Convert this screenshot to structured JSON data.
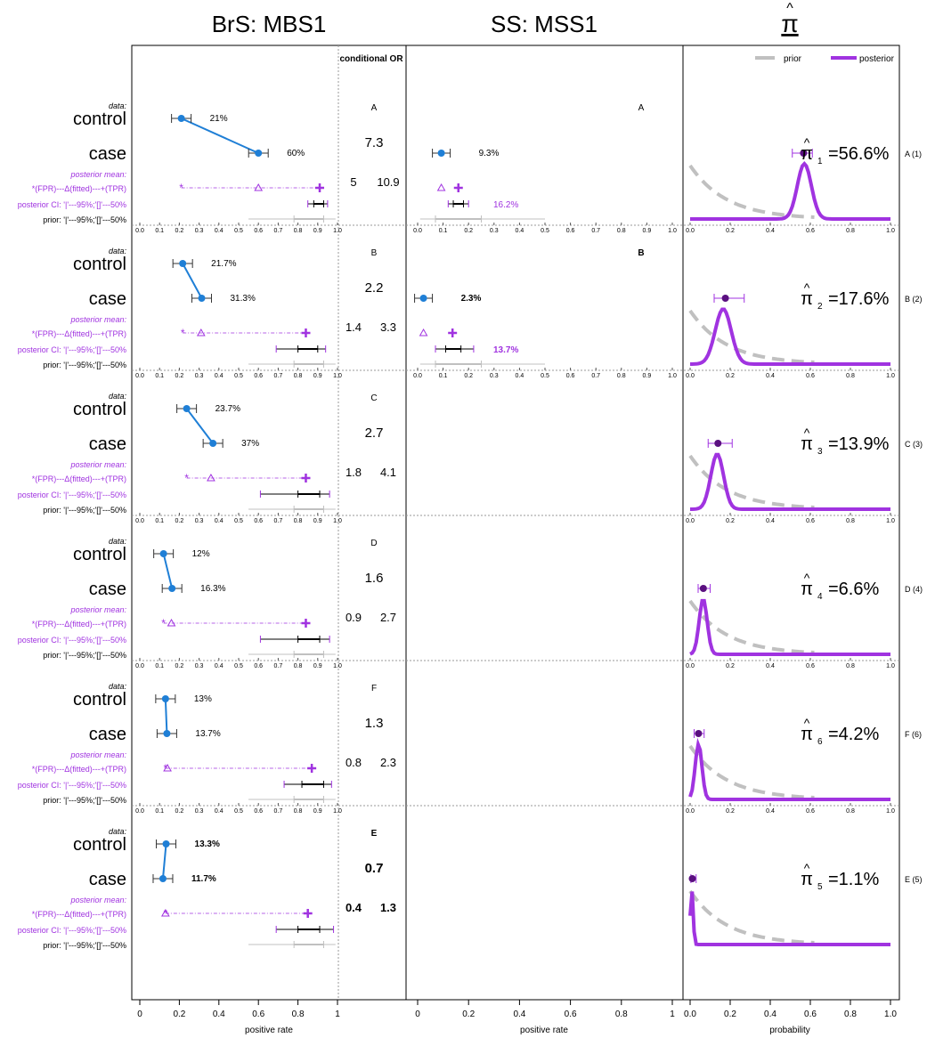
{
  "titles": {
    "brs": "BrS: MBS1",
    "ss": "SS: MSS1",
    "pi": "π"
  },
  "legend": {
    "prior": "prior",
    "posterior": "posterior"
  },
  "cor_header": "conditional OR",
  "row_labels": {
    "data": "data:",
    "control": "control",
    "case": "case",
    "pm": "posterior mean:",
    "pm_legend": "*(FPR)---Δ(fitted)---+(TPR)",
    "ci": "posterior CI: '|'---95%;'[]'---50%",
    "prior": "prior: '|'---95%;'[]'---50%"
  },
  "axis_labels": {
    "brs": "positive rate",
    "ss": "positive rate",
    "pi": "probability"
  },
  "bottom_ticks": {
    "brs": [
      "0",
      "0.2",
      "0.4",
      "0.6",
      "0.8",
      "1"
    ],
    "ss": [
      "0",
      "0.2",
      "0.4",
      "0.6",
      "0.8",
      "1"
    ],
    "pi": [
      "0.0",
      "0.2",
      "0.4",
      "0.6",
      "0.8",
      "1.0"
    ]
  },
  "strip_ticks": {
    "brs": [
      "0.0",
      "0.1",
      "0.2",
      "0.3",
      "0.4",
      "0.5",
      "0.6",
      "0.7",
      "0.8",
      "0.9",
      "1.0"
    ],
    "pi": [
      "0.0",
      "0.2",
      "0.4",
      "0.6",
      "0.8",
      "1.0"
    ]
  },
  "chart_data": {
    "type": "scatter",
    "description_free": true,
    "ss_tick_count": 11,
    "pathogens": [
      {
        "label": "A",
        "side": "A (1)",
        "pi_label": "56.6%",
        "pi_sub": "1",
        "pi": 0.566,
        "control": 0.21,
        "control_lab": "21%",
        "case": 0.6,
        "case_lab": "60%",
        "or": "7.3",
        "or_lo": "5",
        "or_hi": "10.9",
        "fpr": 0.21,
        "fitted": 0.6,
        "tpr": 0.91,
        "tpr_ci95": [
          0.85,
          0.95
        ],
        "tpr_ci50": [
          0.88,
          0.93
        ],
        "ss": {
          "obs": 0.093,
          "obs_lab": "9.3%",
          "tpr": 0.16,
          "tpr_lab": "16.2%",
          "fitted": 0.093,
          "ci95": [
            0.12,
            0.2
          ],
          "ci50": [
            0.14,
            0.18
          ],
          "prior95": [
            0.01,
            0.5
          ],
          "prior50": [
            0.07,
            0.25
          ]
        },
        "post": {
          "mean": 0.566,
          "ci95": [
            0.51,
            0.61
          ],
          "mode": 0.57,
          "sd": 0.035
        }
      },
      {
        "label": "B",
        "side": "B (2)",
        "pi_label": "17.6%",
        "pi_sub": "2",
        "pi": 0.176,
        "control": 0.217,
        "control_lab": "21.7%",
        "case": 0.313,
        "case_lab": "31.3%",
        "or": "2.2",
        "or_lo": "1.4",
        "or_hi": "3.3",
        "fpr": 0.217,
        "fitted": 0.31,
        "tpr": 0.84,
        "tpr_ci95": [
          0.69,
          0.94
        ],
        "tpr_ci50": [
          0.8,
          0.9
        ],
        "ss": {
          "obs": 0.023,
          "obs_lab": "2.3%",
          "tpr": 0.137,
          "tpr_lab": "13.7%",
          "fitted": 0.023,
          "ci95": [
            0.07,
            0.22
          ],
          "ci50": [
            0.11,
            0.17
          ],
          "prior95": [
            0.01,
            0.5
          ],
          "prior50": [
            0.07,
            0.25
          ]
        },
        "post": {
          "mean": 0.176,
          "ci95": [
            0.12,
            0.27
          ],
          "mode": 0.165,
          "sd": 0.04
        }
      },
      {
        "label": "C",
        "side": "C (3)",
        "pi_label": "13.9%",
        "pi_sub": "3",
        "pi": 0.139,
        "control": 0.237,
        "control_lab": "23.7%",
        "case": 0.37,
        "case_lab": "37%",
        "fpr": 0.237,
        "fitted": 0.36,
        "tpr": 0.84,
        "tpr_ci95": [
          0.61,
          0.96
        ],
        "tpr_ci50": [
          0.8,
          0.91
        ],
        "or": "2.7",
        "or_lo": "1.8",
        "or_hi": "4.1",
        "post": {
          "mean": 0.139,
          "ci95": [
            0.09,
            0.21
          ],
          "mode": 0.135,
          "sd": 0.032
        }
      },
      {
        "label": "D",
        "side": "D (4)",
        "pi_label": "6.6%",
        "pi_sub": "4",
        "pi": 0.066,
        "control": 0.12,
        "control_lab": "12%",
        "case": 0.163,
        "case_lab": "16.3%",
        "or": "1.6",
        "or_lo": "0.9",
        "or_hi": "2.7",
        "fpr": 0.12,
        "fitted": 0.16,
        "tpr": 0.84,
        "tpr_ci95": [
          0.61,
          0.96
        ],
        "tpr_ci50": [
          0.8,
          0.91
        ],
        "post": {
          "mean": 0.066,
          "ci95": [
            0.04,
            0.1
          ],
          "mode": 0.065,
          "sd": 0.02
        }
      },
      {
        "label": "F",
        "side": "F (6)",
        "pi_label": "4.2%",
        "pi_sub": "6",
        "pi": 0.042,
        "control": 0.13,
        "control_lab": "13%",
        "case": 0.137,
        "case_lab": "13.7%",
        "or": "1.3",
        "or_lo": "0.8",
        "or_hi": "2.3",
        "fpr": 0.13,
        "fitted": 0.14,
        "tpr": 0.87,
        "tpr_ci95": [
          0.73,
          0.97
        ],
        "tpr_ci50": [
          0.82,
          0.93
        ],
        "post": {
          "mean": 0.042,
          "ci95": [
            0.02,
            0.07
          ],
          "mode": 0.042,
          "sd": 0.017
        }
      },
      {
        "label": "E",
        "side": "E (5)",
        "pi_label": "1.1%",
        "pi_sub": "5",
        "pi": 0.011,
        "control": 0.133,
        "control_lab": "13.3%",
        "case": 0.117,
        "case_lab": "11.7%",
        "or": "0.7",
        "or_lo": "0.4",
        "or_hi": "1.3",
        "fpr": 0.13,
        "fitted": 0.13,
        "tpr": 0.85,
        "tpr_ci95": [
          0.69,
          0.98
        ],
        "tpr_ci50": [
          0.8,
          0.91
        ],
        "post": {
          "mean": 0.011,
          "ci95": [
            0.004,
            0.03
          ],
          "mode": 0.008,
          "sd": 0.007
        }
      }
    ],
    "brs_prior_ci95": [
      0.55,
      0.99
    ],
    "brs_prior_ci50": [
      0.78,
      0.93
    ],
    "xlim": [
      0,
      1
    ],
    "colors": {
      "blue": "#1f7fd6",
      "purple": "#a033e0",
      "gray": "#c0c0c0",
      "dark": "#000000"
    }
  }
}
